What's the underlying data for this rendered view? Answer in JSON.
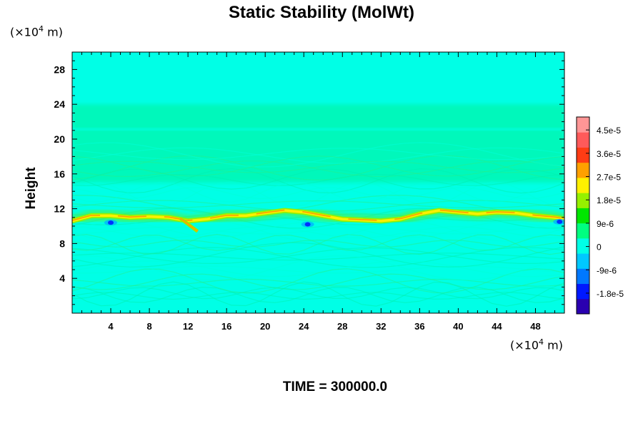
{
  "chart_data": {
    "type": "heatmap",
    "title": "Static Stability (MolWt)",
    "ylabel": "Height",
    "y_unit": {
      "prefix": "(×10",
      "exp": "4",
      "suffix": " m)"
    },
    "x_unit": {
      "prefix": "(×10",
      "exp": "4",
      "suffix": " m)"
    },
    "xlim": [
      0,
      51
    ],
    "ylim": [
      0,
      30
    ],
    "xticks": [
      4,
      8,
      12,
      16,
      20,
      24,
      28,
      32,
      36,
      40,
      44,
      48
    ],
    "yticks": [
      4,
      8,
      12,
      16,
      20,
      24,
      28
    ],
    "colorbar": {
      "labels": [
        "4.5e-5",
        "3.6e-5",
        "2.7e-5",
        "1.8e-5",
        "9e-6",
        "0",
        "-9e-6",
        "-1.8e-5"
      ],
      "range": [
        -2.6e-05,
        5e-05
      ],
      "colors": [
        "#2a00b0",
        "#0018ff",
        "#0078ff",
        "#00c8ff",
        "#00ffe6",
        "#00ff80",
        "#00e600",
        "#96f000",
        "#fff000",
        "#ffa000",
        "#ff3c14",
        "#ff5a5a",
        "#ff9696"
      ]
    },
    "background_levels": {
      "lower_region": "0 (cyan)",
      "band_15_to_24": "slightly positive (green-cyan)",
      "upper_region": "0 (cyan)"
    },
    "tropopause_band": {
      "x": [
        0,
        2,
        4,
        6,
        8,
        10,
        12,
        14,
        16,
        18,
        20,
        22,
        24,
        26,
        28,
        30,
        32,
        34,
        36,
        38,
        40,
        42,
        44,
        46,
        48,
        50,
        51
      ],
      "y": [
        10.6,
        11.2,
        11.2,
        11.0,
        11.1,
        11.0,
        10.6,
        10.8,
        11.2,
        11.2,
        11.5,
        11.8,
        11.6,
        11.2,
        10.8,
        10.7,
        10.6,
        10.8,
        11.4,
        11.8,
        11.6,
        11.4,
        11.6,
        11.5,
        11.2,
        11.0,
        10.8
      ],
      "peak_value": "2.7e-5",
      "negative_spots": [
        {
          "x": 24.4,
          "y": 10.2,
          "value": "-1.8e-5"
        },
        {
          "x": 4.0,
          "y": 10.4,
          "value": "-9e-6"
        },
        {
          "x": 50.5,
          "y": 10.5,
          "value": "-9e-6"
        }
      ]
    }
  },
  "time_label": "TIME = 300000.0"
}
